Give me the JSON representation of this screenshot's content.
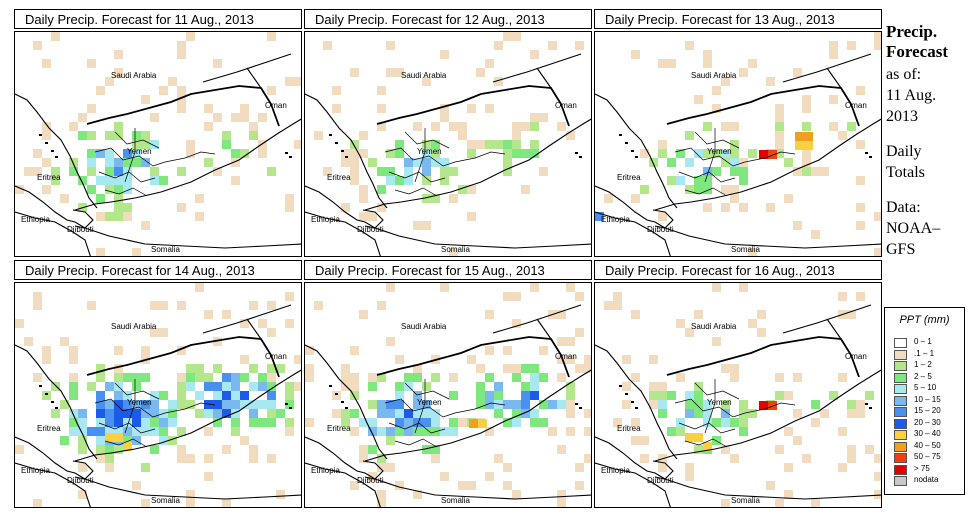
{
  "panels": [
    {
      "title": "Daily Precip. Forecast for  11 Aug., 2013",
      "intensity": 0.7,
      "hotspots": []
    },
    {
      "title": "Daily Precip. Forecast for  12 Aug., 2013",
      "intensity": 0.6,
      "hotspots": []
    },
    {
      "title": "Daily Precip. Forecast for  13 Aug., 2013",
      "intensity": 0.55,
      "hotspots": [
        "orange-east",
        "red-mid"
      ]
    },
    {
      "title": "Daily Precip. Forecast for  14 Aug., 2013",
      "intensity": 0.95,
      "hotspots": [
        "yellow-west"
      ]
    },
    {
      "title": "Daily Precip. Forecast for  15 Aug., 2013",
      "intensity": 0.75,
      "hotspots": [
        "orange-mid"
      ]
    },
    {
      "title": "Daily Precip. Forecast for  16 Aug., 2013",
      "intensity": 0.55,
      "hotspots": [
        "red-mid",
        "yellow-west"
      ]
    }
  ],
  "map_labels": {
    "saudi": "Saudi Arabia",
    "oman": "Oman",
    "yemen": "Yemen",
    "eritrea": "Eritrea",
    "ethiopia": "Ethiopia",
    "djibouti": "Djibouti",
    "somalia": "Somalia"
  },
  "side": {
    "line1": "Precip.",
    "line2": "Forecast",
    "line3": "as of:",
    "line4": "11 Aug.",
    "line5": "2013",
    "line6": "Daily",
    "line7": "Totals",
    "line8": "Data:",
    "line9": "NOAA–",
    "line10": "GFS"
  },
  "legend": {
    "title": "PPT (mm)",
    "items": [
      {
        "label": "0 – 1",
        "color": "#ffffff"
      },
      {
        "label": ".1 – 1",
        "color": "#f2dcc0"
      },
      {
        "label": "1 – 2",
        "color": "#b4e68c"
      },
      {
        "label": "2 – 5",
        "color": "#7ee87e"
      },
      {
        "label": "5 – 10",
        "color": "#a8e8f0"
      },
      {
        "label": "10 – 15",
        "color": "#7ab8f0"
      },
      {
        "label": "15 – 20",
        "color": "#4a90f0"
      },
      {
        "label": "20 – 30",
        "color": "#1c5ae8"
      },
      {
        "label": "30 – 40",
        "color": "#f8d040"
      },
      {
        "label": "40 – 50",
        "color": "#f0a020"
      },
      {
        "label": "50 – 75",
        "color": "#f04010"
      },
      {
        "label": "> 75",
        "color": "#e00000"
      },
      {
        "label": "nodata",
        "color": "#c8c8c8"
      }
    ]
  }
}
